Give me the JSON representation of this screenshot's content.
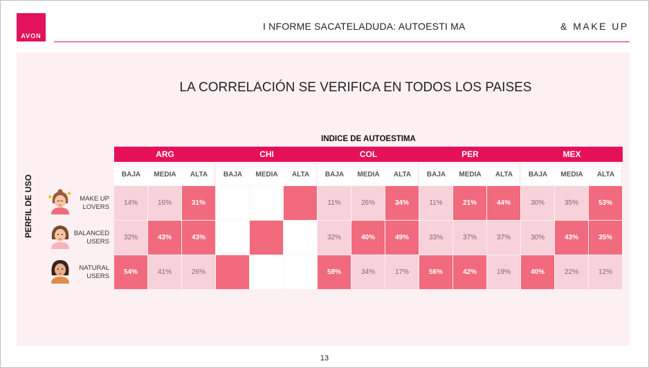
{
  "header": {
    "logo_text": "AVON",
    "report_title": "I NFORME SACATELADUDA: AUTOESTI MA",
    "brand_right": "& MAKE UP",
    "accent_color": "#e3125b"
  },
  "slide": {
    "headline": "LA CORRELACIÓN SE VERIFICA EN TODOS LOS PAISES",
    "index_title": "INDICE DE AUTOESTIMA",
    "y_axis_label": "PERFIL DE USO",
    "sub_levels": [
      "BAJA",
      "MEDIA",
      "ALTA"
    ],
    "countries": [
      {
        "code": "ARG",
        "rows": [
          {
            "values": [
              "14%",
              "16%",
              "31%"
            ],
            "levels": [
              "l",
              "l",
              "h"
            ]
          },
          {
            "values": [
              "32%",
              "43%",
              "43%"
            ],
            "levels": [
              "l",
              "h",
              "h"
            ]
          },
          {
            "values": [
              "54%",
              "41%",
              "26%"
            ],
            "levels": [
              "h",
              "l",
              "l"
            ]
          }
        ]
      },
      {
        "code": "CHI",
        "rows": [
          {
            "values": [
              "",
              "",
              ""
            ],
            "levels": [
              "w",
              "w",
              "h"
            ]
          },
          {
            "values": [
              "",
              "",
              ""
            ],
            "levels": [
              "w",
              "h",
              "w"
            ]
          },
          {
            "values": [
              "",
              "",
              ""
            ],
            "levels": [
              "h",
              "w",
              "w"
            ]
          }
        ]
      },
      {
        "code": "COL",
        "rows": [
          {
            "values": [
              "11%",
              "26%",
              "34%"
            ],
            "levels": [
              "l",
              "l",
              "h"
            ]
          },
          {
            "values": [
              "32%",
              "40%",
              "49%"
            ],
            "levels": [
              "l",
              "h",
              "h"
            ]
          },
          {
            "values": [
              "58%",
              "34%",
              "17%"
            ],
            "levels": [
              "h",
              "l",
              "l"
            ]
          }
        ]
      },
      {
        "code": "PER",
        "rows": [
          {
            "values": [
              "11%",
              "21%",
              "44%"
            ],
            "levels": [
              "l",
              "h",
              "h"
            ]
          },
          {
            "values": [
              "33%",
              "37%",
              "37%"
            ],
            "levels": [
              "l",
              "l",
              "l"
            ]
          },
          {
            "values": [
              "56%",
              "42%",
              "19%"
            ],
            "levels": [
              "h",
              "h",
              "l"
            ]
          }
        ]
      },
      {
        "code": "MEX",
        "rows": [
          {
            "values": [
              "30%",
              "35%",
              "53%"
            ],
            "levels": [
              "l",
              "l",
              "h"
            ]
          },
          {
            "values": [
              "30%",
              "43%",
              "35%"
            ],
            "levels": [
              "l",
              "h",
              "h"
            ]
          },
          {
            "values": [
              "40%",
              "22%",
              "12%"
            ],
            "levels": [
              "h",
              "l",
              "l"
            ]
          }
        ]
      }
    ],
    "profiles": [
      {
        "line1": "MAKE UP",
        "line2": "LOVERS",
        "icon": "makeup-lover-avatar-icon"
      },
      {
        "line1": "BALANCED",
        "line2": "USERS",
        "icon": "balanced-user-avatar-icon"
      },
      {
        "line1": "NATURAL",
        "line2": "USERS",
        "icon": "natural-user-avatar-icon"
      }
    ],
    "colors": {
      "high": "#f26a7d",
      "low": "#f7d2da",
      "header": "#e6105a",
      "panel": "#fdf0f3"
    }
  },
  "footer": {
    "page_number": "13"
  }
}
